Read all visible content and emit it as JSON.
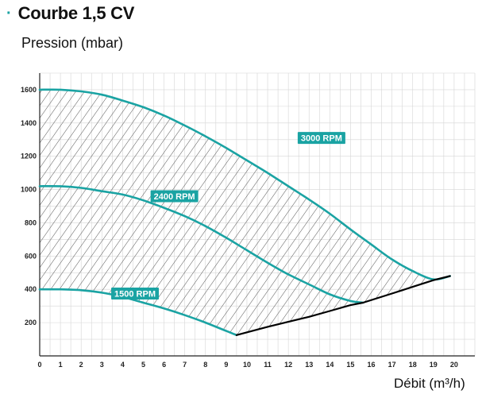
{
  "header": {
    "bullet": "·",
    "title": "Courbe 1,5 CV"
  },
  "colors": {
    "accent": "#1aa3a3",
    "loss_line": "#000000",
    "grid": "#d6d6d6",
    "hatch": "#555555"
  },
  "chart_data": {
    "type": "line",
    "title": "Courbe 1,5 CV",
    "ylabel": "Pression (mbar)",
    "xlabel": "Débit (m³/h)",
    "xlim": [
      0,
      21
    ],
    "ylim": [
      0,
      1700
    ],
    "x_ticks": [
      0,
      1,
      2,
      3,
      4,
      5,
      6,
      7,
      8,
      9,
      10,
      11,
      12,
      13,
      14,
      15,
      16,
      17,
      18,
      19,
      20
    ],
    "y_ticks": [
      200,
      400,
      600,
      800,
      1000,
      1200,
      1400,
      1600
    ],
    "grid": true,
    "hatched_region": "between 1500 RPM and 3000 RPM curves",
    "series": [
      {
        "name": "3000 RPM",
        "x": [
          0,
          1,
          2,
          3,
          4,
          5,
          6,
          7,
          8,
          9,
          10,
          11,
          12,
          13,
          14,
          15,
          16,
          17,
          18,
          19,
          19.8
        ],
        "y": [
          1600,
          1600,
          1590,
          1570,
          1535,
          1495,
          1445,
          1385,
          1320,
          1250,
          1175,
          1100,
          1020,
          940,
          855,
          760,
          670,
          580,
          510,
          460,
          480
        ]
      },
      {
        "name": "2400 RPM",
        "x": [
          0,
          1,
          2,
          3,
          4,
          5,
          6,
          7,
          8,
          9,
          10,
          11,
          12,
          13,
          14,
          15,
          15.6
        ],
        "y": [
          1020,
          1020,
          1010,
          990,
          970,
          935,
          890,
          840,
          780,
          710,
          635,
          560,
          490,
          430,
          370,
          330,
          320
        ]
      },
      {
        "name": "1500 RPM",
        "x": [
          0,
          1,
          2,
          3,
          4,
          5,
          6,
          7,
          8,
          9,
          9.5
        ],
        "y": [
          400,
          400,
          395,
          380,
          355,
          320,
          285,
          245,
          200,
          150,
          125
        ]
      },
      {
        "name": "",
        "x": [
          9.5,
          11,
          12,
          13,
          14,
          15,
          15.6,
          17,
          18,
          19,
          19.8
        ],
        "y": [
          125,
          175,
          205,
          235,
          270,
          305,
          320,
          375,
          415,
          455,
          480
        ]
      }
    ],
    "labels": [
      {
        "text": "3000 RPM",
        "x": 13.6,
        "y": 1310
      },
      {
        "text": "2400 RPM",
        "x": 6.5,
        "y": 960
      },
      {
        "text": "1500 RPM",
        "x": 4.6,
        "y": 375
      }
    ]
  }
}
